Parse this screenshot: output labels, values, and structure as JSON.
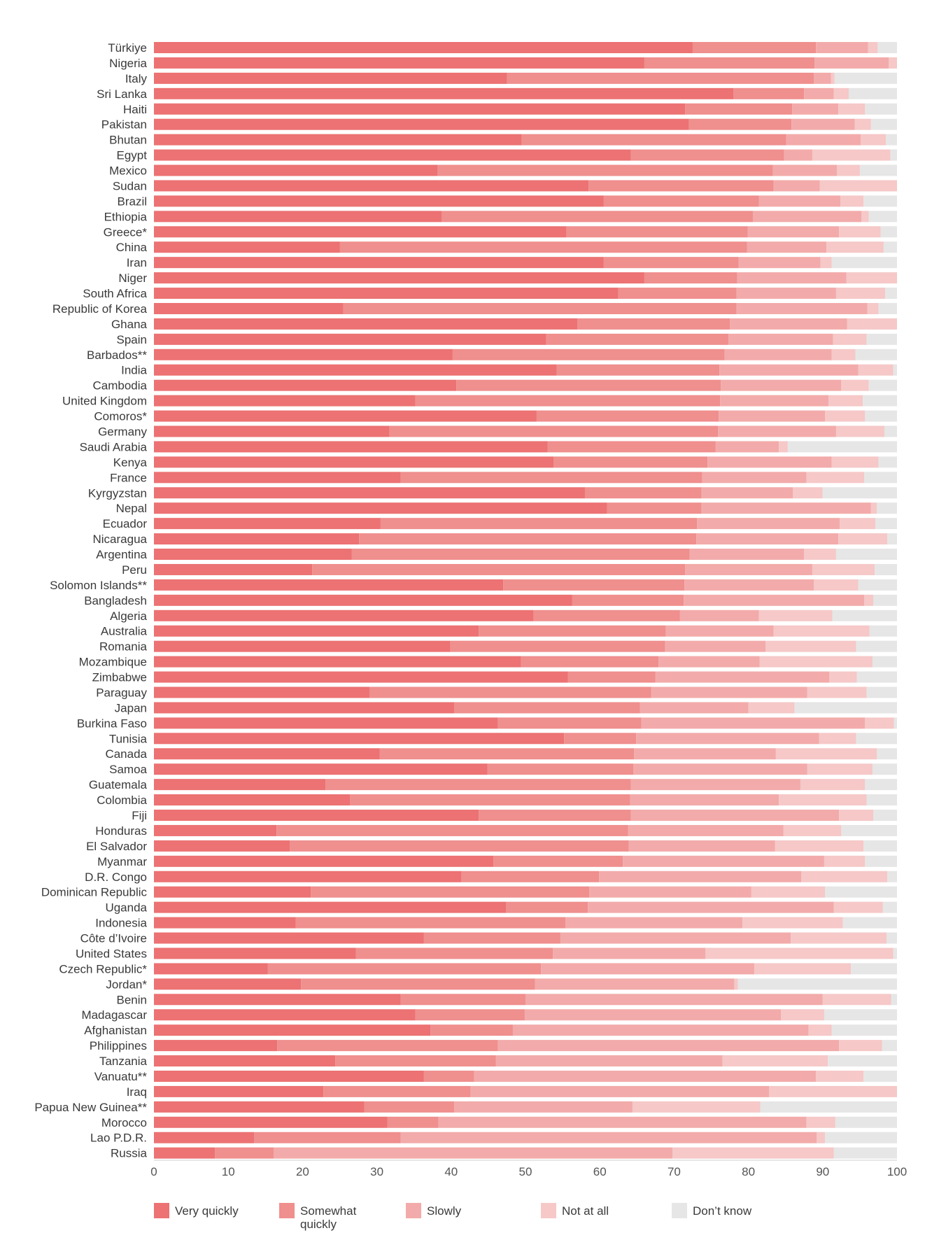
{
  "chart_data": {
    "type": "bar",
    "orientation": "horizontal",
    "stacked": true,
    "title": "",
    "xlabel": "",
    "ylabel": "",
    "xlim": [
      0,
      100
    ],
    "xticks": [
      0,
      10,
      20,
      30,
      40,
      50,
      60,
      70,
      80,
      90,
      100
    ],
    "grid": false,
    "legend_position": "bottom",
    "categories": [
      "Türkiye",
      "Nigeria",
      "Italy",
      "Sri Lanka",
      "Haiti",
      "Pakistan",
      "Bhutan",
      "Egypt",
      "Mexico",
      "Sudan",
      "Brazil",
      "Ethiopia",
      "Greece*",
      "China",
      "Iran",
      "Niger",
      "South Africa",
      "Republic of Korea",
      "Ghana",
      "Spain",
      "Barbados**",
      "India",
      "Cambodia",
      "United Kingdom",
      "Comoros*",
      "Germany",
      "Saudi Arabia",
      "Kenya",
      "France",
      "Kyrgyzstan",
      "Nepal",
      "Ecuador",
      "Nicaragua",
      "Argentina",
      "Peru",
      "Solomon Islands**",
      "Bangladesh",
      "Algeria",
      "Australia",
      "Romania",
      "Mozambique",
      "Zimbabwe",
      "Paraguay",
      "Japan",
      "Burkina Faso",
      "Tunisia",
      "Canada",
      "Samoa",
      "Guatemala",
      "Colombia",
      "Fiji",
      "Honduras",
      "El Salvador",
      "Myanmar",
      "D.R. Congo",
      "Dominican Republic",
      "Uganda",
      "Indonesia",
      "Côte d’Ivoire",
      "United States",
      "Czech Republic*",
      "Jordan*",
      "Benin",
      "Madagascar",
      "Afghanistan",
      "Philippines",
      "Tanzania",
      "Vanuatu**",
      "Iraq",
      "Papua New Guinea**",
      "Morocco",
      "Lao P.D.R.",
      "Russia"
    ],
    "series": [
      {
        "name": "Very quickly",
        "color": "#ec7273",
        "values": [
          72.5,
          66.0,
          47.5,
          78.0,
          71.5,
          72.0,
          49.5,
          64.2,
          38.2,
          58.5,
          60.5,
          38.7,
          55.5,
          25.0,
          60.5,
          66.0,
          62.5,
          25.5,
          57.0,
          52.8,
          40.2,
          54.2,
          40.7,
          35.2,
          51.5,
          31.7,
          53.0,
          53.8,
          33.2,
          58.0,
          61.0,
          30.5,
          27.6,
          26.6,
          21.3,
          47.0,
          56.3,
          51.1,
          43.7,
          39.9,
          49.4,
          55.7,
          29.0,
          40.4,
          46.3,
          55.2,
          30.4,
          44.9,
          23.1,
          26.4,
          43.7,
          16.5,
          18.3,
          45.7,
          41.4,
          21.1,
          47.4,
          19.1,
          36.3,
          27.2,
          15.3,
          19.8,
          33.2,
          35.2,
          37.2,
          16.6,
          24.4,
          36.3,
          22.8,
          28.3,
          31.4,
          13.5,
          8.2
        ]
      },
      {
        "name": "Somewhat quickly",
        "color": "#ef8f8e",
        "values": [
          16.6,
          22.9,
          41.3,
          9.5,
          14.4,
          13.8,
          35.6,
          20.6,
          45.1,
          24.9,
          20.9,
          41.9,
          24.4,
          54.8,
          18.2,
          12.5,
          15.9,
          52.9,
          20.5,
          24.5,
          36.6,
          21.9,
          35.6,
          41.0,
          24.5,
          44.2,
          22.6,
          20.7,
          40.6,
          15.7,
          12.7,
          42.6,
          45.4,
          45.5,
          50.2,
          24.4,
          15.0,
          19.7,
          25.2,
          28.9,
          18.5,
          11.8,
          37.9,
          25.0,
          19.3,
          9.7,
          34.2,
          19.6,
          41.1,
          37.7,
          20.5,
          47.3,
          45.6,
          17.4,
          18.5,
          37.5,
          11.0,
          36.3,
          18.4,
          26.5,
          36.8,
          31.5,
          16.8,
          14.7,
          11.1,
          29.7,
          21.6,
          6.8,
          19.8,
          12.1,
          6.9,
          19.7,
          7.9
        ]
      },
      {
        "name": "Slowly",
        "color": "#f2abaa",
        "values": [
          7.0,
          10.0,
          2.3,
          4.0,
          6.2,
          8.5,
          10.0,
          3.8,
          8.6,
          6.2,
          11.0,
          14.6,
          12.3,
          10.7,
          11.0,
          14.7,
          13.4,
          17.6,
          15.8,
          14.1,
          14.4,
          18.7,
          16.2,
          14.6,
          14.3,
          15.9,
          8.5,
          16.7,
          14.0,
          12.3,
          22.8,
          19.2,
          19.1,
          15.4,
          17.1,
          17.4,
          24.3,
          10.6,
          14.5,
          13.5,
          13.6,
          23.4,
          21.0,
          14.6,
          30.1,
          24.6,
          19.1,
          23.4,
          22.8,
          20.0,
          28.0,
          20.9,
          19.7,
          27.1,
          27.2,
          21.8,
          33.1,
          23.8,
          31.0,
          20.5,
          28.7,
          26.8,
          40.0,
          34.5,
          39.8,
          45.9,
          30.5,
          46.0,
          40.2,
          24.0,
          49.5,
          56.0,
          53.7
        ]
      },
      {
        "name": "Not at all",
        "color": "#f6c8c8",
        "values": [
          1.3,
          1.6,
          0.5,
          2.0,
          3.6,
          2.2,
          3.4,
          10.5,
          3.1,
          11.8,
          3.1,
          1.0,
          5.6,
          7.7,
          1.5,
          6.8,
          6.6,
          1.5,
          6.7,
          4.5,
          3.2,
          4.7,
          3.7,
          4.6,
          5.4,
          6.5,
          1.2,
          6.3,
          7.8,
          4.0,
          0.8,
          4.8,
          6.6,
          4.3,
          8.4,
          6.0,
          1.2,
          9.9,
          12.9,
          12.2,
          15.2,
          3.7,
          8.0,
          6.2,
          3.9,
          5.0,
          13.6,
          8.8,
          8.7,
          11.8,
          4.6,
          7.8,
          11.9,
          5.5,
          11.6,
          9.9,
          6.6,
          13.5,
          12.9,
          25.3,
          13.0,
          0.5,
          9.2,
          5.8,
          3.1,
          5.8,
          14.2,
          6.4,
          17.4,
          17.2,
          3.9,
          1.1,
          21.7
        ]
      },
      {
        "name": "Don’t know",
        "color": "#e6e6e6",
        "values": [
          2.6,
          0.5,
          8.4,
          6.5,
          4.3,
          3.5,
          1.5,
          0.9,
          5.0,
          1.6,
          4.5,
          3.8,
          2.2,
          1.8,
          8.8,
          0.0,
          2.6,
          2.5,
          0.0,
          4.1,
          5.6,
          0.5,
          3.8,
          4.6,
          4.3,
          1.7,
          14.7,
          2.5,
          4.4,
          10.0,
          2.7,
          2.9,
          1.3,
          8.2,
          3.0,
          5.2,
          3.2,
          8.7,
          3.7,
          5.5,
          3.3,
          5.4,
          4.1,
          13.8,
          0.4,
          5.5,
          2.7,
          3.3,
          4.3,
          4.1,
          3.2,
          7.5,
          4.5,
          4.3,
          1.3,
          9.7,
          1.9,
          7.3,
          1.4,
          0.5,
          6.2,
          21.4,
          0.8,
          9.8,
          8.8,
          2.0,
          9.3,
          4.5,
          0.0,
          18.4,
          8.3,
          9.7,
          8.5
        ]
      }
    ]
  },
  "legend": {
    "items": [
      {
        "label_lines": [
          "Very quickly"
        ],
        "color": "#ec7273"
      },
      {
        "label_lines": [
          "Somewhat",
          "quickly"
        ],
        "color": "#ef8f8e"
      },
      {
        "label_lines": [
          "Slowly"
        ],
        "color": "#f2abaa"
      },
      {
        "label_lines": [
          "Not at all"
        ],
        "color": "#f6c8c8"
      },
      {
        "label_lines": [
          "Don’t know"
        ],
        "color": "#e6e6e6"
      }
    ]
  }
}
